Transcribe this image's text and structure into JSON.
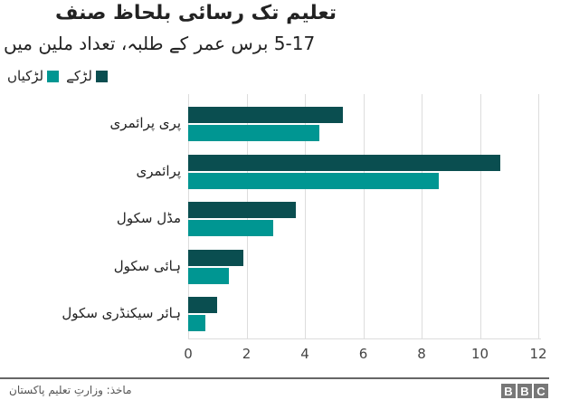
{
  "chart_data": {
    "type": "bar",
    "orientation": "horizontal",
    "title": "تعلیم تک رسائی بلحاظ صنف",
    "subtitle": "5-17 برس عمر کے طلبہ، تعداد ملین میں",
    "categories": [
      "پری پرائمری",
      "پرائمری",
      "مڈل سکول",
      "ہائی سکول",
      "ہائر سیکنڈری سکول"
    ],
    "series": [
      {
        "name": "لڑکے",
        "color": "#0a4e50",
        "values": [
          5.3,
          10.7,
          3.7,
          1.9,
          1.0
        ]
      },
      {
        "name": "لڑکیاں",
        "color": "#009692",
        "values": [
          4.5,
          8.6,
          2.9,
          1.4,
          0.6
        ]
      }
    ],
    "xlabel": "",
    "ylabel": "",
    "xlim": [
      0,
      12
    ],
    "xticks": [
      "0",
      "2",
      "4",
      "6",
      "8",
      "10",
      "12"
    ],
    "grid": true,
    "legend_position": "top-left"
  },
  "legend": {
    "boys": "لڑکے",
    "girls": "لڑکیاں"
  },
  "footer": {
    "source": "ماخذ: وزارتِ تعلیم پاکستان",
    "logo": [
      "B",
      "B",
      "C"
    ]
  }
}
